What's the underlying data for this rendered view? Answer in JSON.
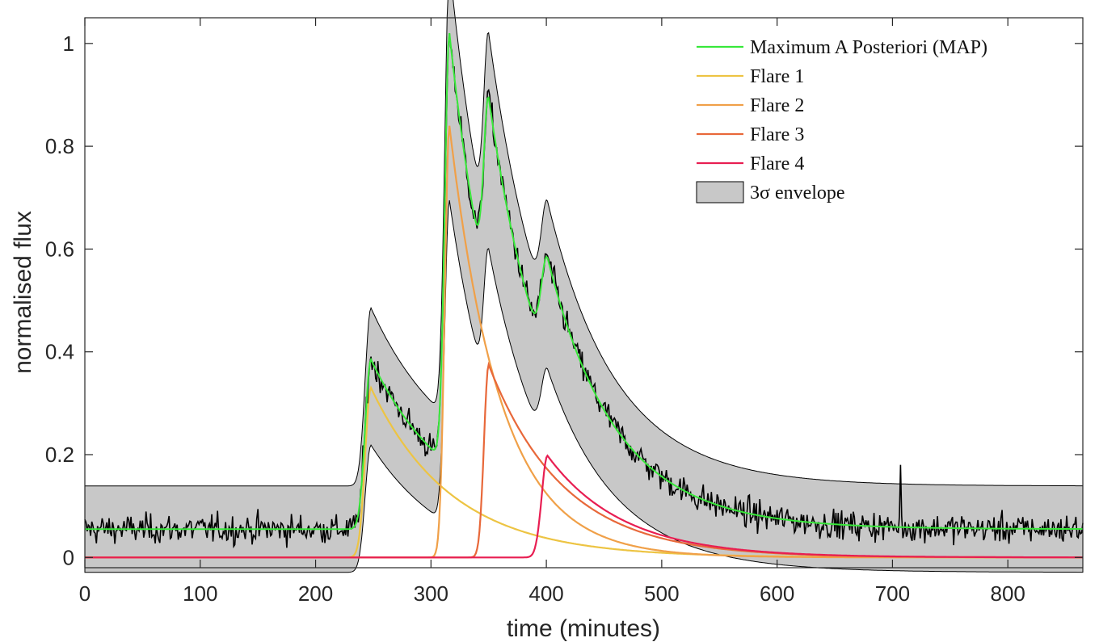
{
  "chart_data": {
    "type": "line",
    "xlabel": "time (minutes)",
    "ylabel": "normalised flux",
    "xlim": [
      0,
      865
    ],
    "ylim": [
      -0.02,
      1.05
    ],
    "xticks": [
      0,
      100,
      200,
      300,
      400,
      500,
      600,
      700,
      800
    ],
    "xtick_labels": [
      "0",
      "100",
      "200",
      "300",
      "400",
      "500",
      "600",
      "700",
      "800"
    ],
    "yticks": [
      0,
      0.2,
      0.4,
      0.6,
      0.8,
      1
    ],
    "ytick_labels": [
      "0",
      "0.2",
      "0.4",
      "0.6",
      "0.8",
      "1"
    ],
    "grid": false,
    "legend_position": "top-right",
    "baseline": 0.055,
    "envelope_half_width": 0.084,
    "flares": [
      {
        "name": "Flare 1",
        "color": "#edc443",
        "t_peak": 248,
        "amplitude": 0.33,
        "rise": 5,
        "decay": 70
      },
      {
        "name": "Flare 2",
        "color": "#f0a048",
        "t_peak": 316,
        "amplitude": 0.84,
        "rise": 4,
        "decay": 44
      },
      {
        "name": "Flare 3",
        "color": "#e8683a",
        "t_peak": 350,
        "amplitude": 0.375,
        "rise": 4,
        "decay": 65
      },
      {
        "name": "Flare 4",
        "color": "#e81e52",
        "t_peak": 401,
        "amplitude": 0.198,
        "rise": 5,
        "decay": 65
      }
    ],
    "flare_baseline_value": 0.0,
    "observed": {
      "color": "#000000",
      "noise_sigma": 0.02,
      "spike": {
        "t": 707,
        "value": 0.18
      }
    },
    "map_color": "#38e83a",
    "envelope_fill": "#c8c8c8",
    "legend": [
      {
        "label": "Maximum A Posteriori (MAP)",
        "kind": "line",
        "color": "#38e83a"
      },
      {
        "label": "Flare 1",
        "kind": "line",
        "color": "#edc443"
      },
      {
        "label": "Flare 2",
        "kind": "line",
        "color": "#f0a048"
      },
      {
        "label": "Flare 3",
        "kind": "line",
        "color": "#e8683a"
      },
      {
        "label": "Flare 4",
        "kind": "line",
        "color": "#e81e52"
      },
      {
        "label": "3σ envelope",
        "kind": "patch",
        "color": "#c8c8c8"
      }
    ]
  }
}
